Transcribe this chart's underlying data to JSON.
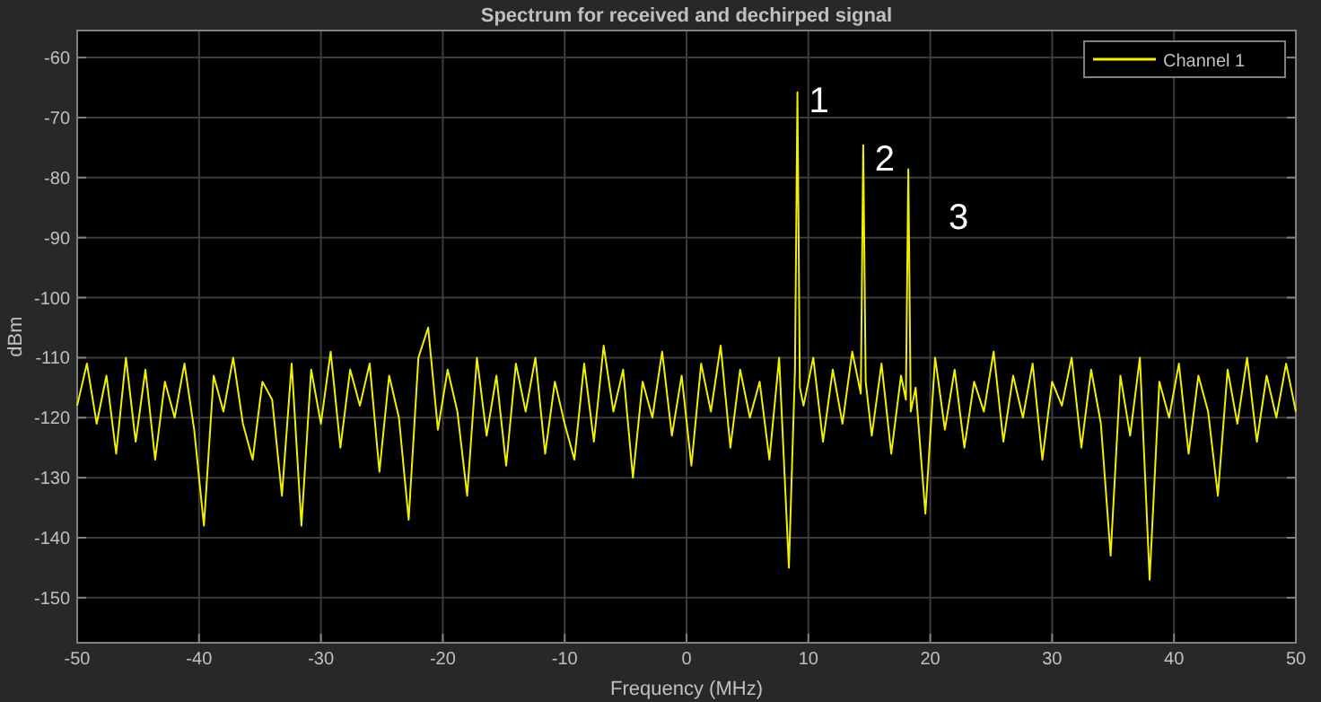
{
  "chart_data": {
    "type": "line",
    "title": "Spectrum for received and dechirped signal",
    "xlabel": "Frequency (MHz)",
    "ylabel": "dBm",
    "xlim": [
      -50,
      50
    ],
    "xticks": [
      -50,
      -40,
      -30,
      -20,
      -10,
      0,
      10,
      20,
      30,
      40,
      50
    ],
    "ylim": [
      -157.5,
      -55.5
    ],
    "yticks": [
      -60,
      -70,
      -80,
      -90,
      -100,
      -110,
      -120,
      -130,
      -140,
      -150
    ],
    "grid": true,
    "legend": "top right",
    "marker": "none",
    "line_style": "solid",
    "x": [
      -50,
      -49.2,
      -48.4,
      -47.6,
      -46.8,
      -46,
      -45.2,
      -44.4,
      -43.6,
      -42.8,
      -42,
      -41.2,
      -40.4,
      -39.6,
      -38.8,
      -38,
      -37.2,
      -36.4,
      -35.6,
      -34.8,
      -34,
      -33.2,
      -32.4,
      -31.6,
      -30.8,
      -30,
      -29.2,
      -28.4,
      -27.6,
      -26.8,
      -26,
      -25.2,
      -24.4,
      -23.6,
      -22.8,
      -22,
      -21.2,
      -20.4,
      -19.6,
      -18.8,
      -18,
      -17.2,
      -16.4,
      -15.6,
      -14.8,
      -14,
      -13.2,
      -12.4,
      -11.6,
      -10.8,
      -10,
      -9.2,
      -8.4,
      -7.6,
      -6.8,
      -6,
      -5.2,
      -4.4,
      -3.6,
      -2.8,
      -2,
      -1.2,
      -0.4,
      0.4,
      1.2,
      2,
      2.8,
      3.6,
      4.4,
      5.2,
      6,
      6.8,
      7.6,
      8.4,
      8.9,
      9.1,
      9.3,
      9.6,
      10.4,
      11.2,
      12,
      12.8,
      13.6,
      14.3,
      14.5,
      14.7,
      15.2,
      16,
      16.8,
      17.6,
      18,
      18.2,
      18.4,
      18.8,
      19.6,
      20.4,
      21.2,
      22,
      22.8,
      23.6,
      24.4,
      25.2,
      26,
      26.8,
      27.6,
      28.4,
      29.2,
      30,
      30.8,
      31.6,
      32.4,
      33.2,
      34,
      34.8,
      35.6,
      36.4,
      37.2,
      38,
      38.8,
      39.6,
      40.4,
      41.2,
      42,
      42.8,
      43.6,
      44.4,
      45.2,
      46,
      46.8,
      47.6,
      48.4,
      49.2,
      50
    ],
    "series": [
      {
        "name": "Channel 1",
        "color": "#f0f000",
        "values": [
          -118,
          -111,
          -121,
          -113,
          -126,
          -110,
          -124,
          -112,
          -127,
          -114,
          -120,
          -111,
          -122,
          -138,
          -113,
          -119,
          -110,
          -121,
          -127,
          -114,
          -117,
          -133,
          -111,
          -138,
          -112,
          -121,
          -109,
          -125,
          -112,
          -118,
          -111,
          -129,
          -113,
          -120,
          -137,
          -110,
          -105,
          -122,
          -112,
          -119,
          -133,
          -110,
          -123,
          -113,
          -128,
          -111,
          -119,
          -110,
          -126,
          -114,
          -121,
          -127,
          -111,
          -124,
          -108,
          -119,
          -112,
          -130,
          -114,
          -120,
          -109,
          -123,
          -113,
          -128,
          -111,
          -119,
          -108,
          -125,
          -112,
          -120,
          -114,
          -127,
          -110,
          -145,
          -112,
          -65.8,
          -115,
          -118,
          -110,
          -124,
          -112,
          -121,
          -109,
          -116,
          -74.6,
          -114,
          -123,
          -111,
          -126,
          -113,
          -117,
          -78.6,
          -119,
          -115,
          -136,
          -110,
          -122,
          -112,
          -125,
          -114,
          -119,
          -109,
          -124,
          -113,
          -120,
          -111,
          -127,
          -114,
          -118,
          -110,
          -125,
          -112,
          -121,
          -143,
          -113,
          -123,
          -110,
          -147,
          -114,
          -120,
          -111,
          -126,
          -113,
          -119,
          -133,
          -112,
          -121,
          -110,
          -124,
          -113,
          -120,
          -111,
          -119
        ]
      }
    ],
    "annotations": [
      "1",
      "2",
      "3"
    ]
  }
}
